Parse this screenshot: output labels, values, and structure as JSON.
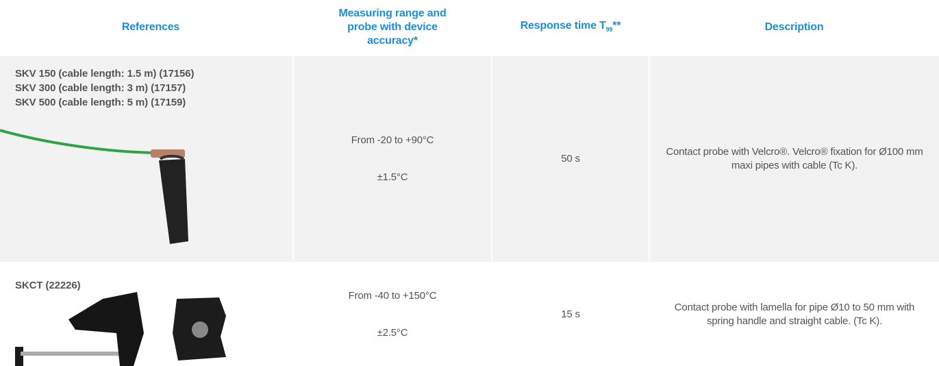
{
  "header": [
    {
      "text": "References"
    },
    {
      "text": "Measuring range and probe with device accuracy*"
    },
    {
      "text": "Response time T",
      "sub": "99",
      "suffix": "**"
    },
    {
      "text": "Description"
    }
  ],
  "rows": [
    {
      "references": [
        "SKV 150 (cable length: 1.5 m) (17156)",
        "SKV 300 (cable length: 3 m) (17157)",
        "SKV 500 (cable length: 5 m) (17159)"
      ],
      "range": "From -20 to +90°C",
      "accuracy": "±1.5°C",
      "response_time": "50 s",
      "description": "Contact probe with Velcro®. Velcro® fixation for Ø100 mm maxi pipes with cable (Tc K)."
    },
    {
      "references": [
        "SKCT (22226)"
      ],
      "range": "From -40 to +150°C",
      "accuracy": "±2.5°C",
      "response_time": "15 s",
      "description": "Contact probe with lamella for pipe Ø10 to 50 mm with spring handle and straight cable. (Tc K)."
    }
  ]
}
